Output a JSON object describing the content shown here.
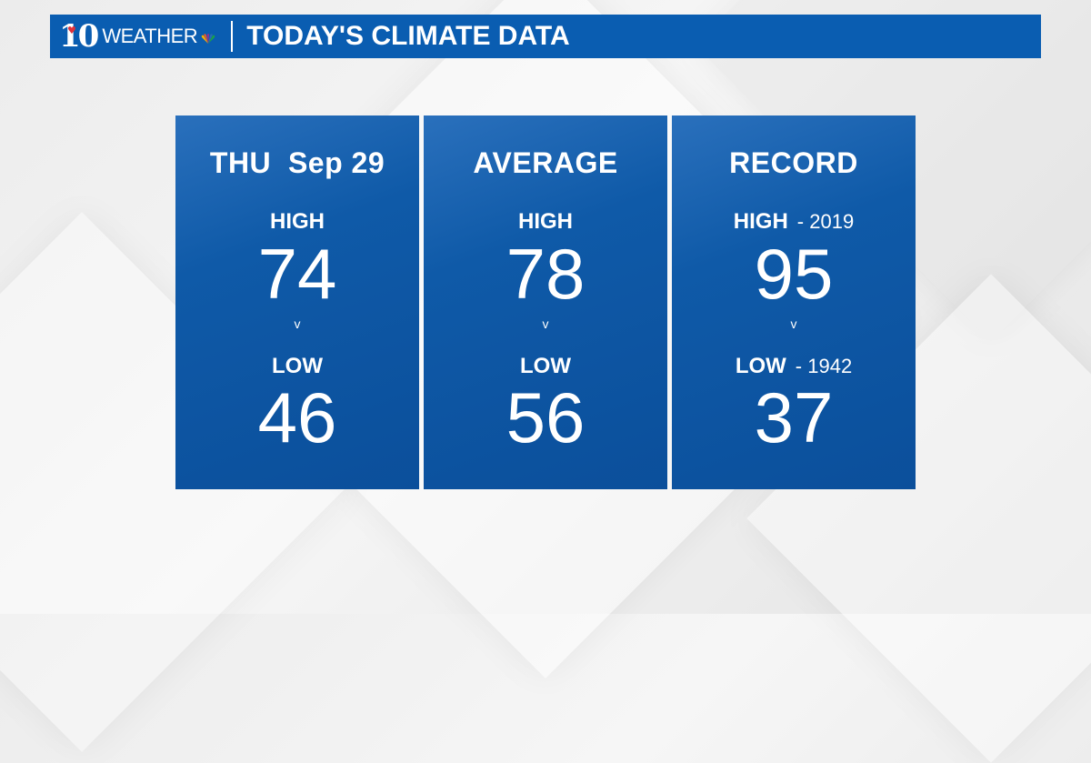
{
  "header": {
    "logo_number": "10",
    "logo_word": "WEATHER",
    "title": "TODAY'S CLIMATE DATA",
    "background_color": "#0a5db1"
  },
  "panels": [
    {
      "title": "THU  Sep 29",
      "high_label": "HIGH",
      "high_year": "",
      "high_value": "74",
      "arrow": "v",
      "low_label": "LOW",
      "low_year": "",
      "low_value": "46"
    },
    {
      "title": "AVERAGE",
      "high_label": "HIGH",
      "high_year": "",
      "high_value": "78",
      "arrow": "v",
      "low_label": "LOW",
      "low_year": "",
      "low_value": "56"
    },
    {
      "title": "RECORD",
      "high_label": "HIGH",
      "high_year": "- 2019",
      "high_value": "95",
      "arrow": "v",
      "low_label": "LOW",
      "low_year": "- 1942",
      "low_value": "37"
    }
  ],
  "colors": {
    "panel_blue": "#0b4f9b",
    "text": "#ffffff",
    "logo_heart": "#e0303a"
  }
}
